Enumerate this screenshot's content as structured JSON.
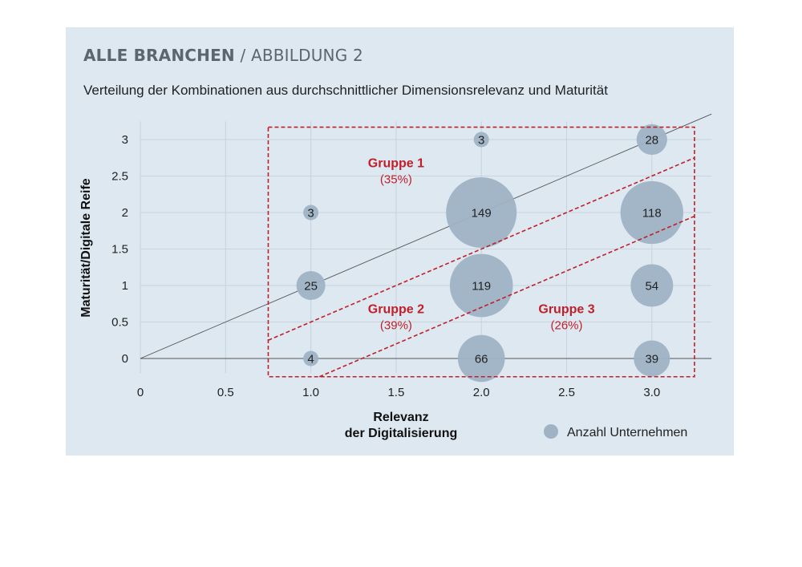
{
  "header": {
    "title_bold": "ALLE BRANCHEN",
    "separator": "/",
    "title_light": "ABBILDUNG 2",
    "subtitle": "Verteilung der Kombinationen aus durchschnittlicher Dimensionsrelevanz und Maturität"
  },
  "colors": {
    "panel_bg": "#dde8f0",
    "bubble": "#9fb3c5",
    "group": "#c0202a",
    "grid": "#c7d3dd",
    "axis": "#555555"
  },
  "chart_data": {
    "type": "scatter",
    "subtype": "bubble",
    "xlabel_lines": [
      "Relevanz",
      "der Digitalisierung"
    ],
    "ylabel": "Maturität/Digitale Reife",
    "xlim": [
      0,
      3.35
    ],
    "ylim": [
      -0.2,
      3.25
    ],
    "x_ticks": [
      0,
      0.5,
      1.0,
      1.5,
      2.0,
      2.5,
      3.0
    ],
    "x_tick_labels": [
      "0",
      "0.5",
      "1.0",
      "1.5",
      "2.0",
      "2.5",
      "3.0"
    ],
    "y_ticks": [
      0,
      0.5,
      1,
      1.5,
      2,
      2.5,
      3
    ],
    "y_tick_labels": [
      "0",
      "0.5",
      "1",
      "1.5",
      "2",
      "2.5",
      "3"
    ],
    "legend": {
      "label": "Anzahl Unternehmen",
      "position": "bottom-right"
    },
    "points": [
      {
        "x": 1,
        "y": 0,
        "count": 4,
        "label": "4"
      },
      {
        "x": 1,
        "y": 1,
        "count": 25,
        "label": "25"
      },
      {
        "x": 1,
        "y": 2,
        "count": 3,
        "label": "3"
      },
      {
        "x": 2,
        "y": 0,
        "count": 66,
        "label": "66"
      },
      {
        "x": 2,
        "y": 1,
        "count": 119,
        "label": "119"
      },
      {
        "x": 2,
        "y": 2,
        "count": 149,
        "label": "149"
      },
      {
        "x": 2,
        "y": 3,
        "count": 3,
        "label": "3"
      },
      {
        "x": 3,
        "y": 0,
        "count": 39,
        "label": "39"
      },
      {
        "x": 3,
        "y": 1,
        "count": 54,
        "label": "54"
      },
      {
        "x": 3,
        "y": 2,
        "count": 118,
        "label": "118"
      },
      {
        "x": 3,
        "y": 3,
        "count": 28,
        "label": "28"
      }
    ],
    "reference_line": {
      "from": [
        0,
        0
      ],
      "to": [
        3.35,
        3.35
      ]
    },
    "group_box": {
      "x": [
        0.75,
        3.25
      ],
      "y": [
        -0.25,
        3.17
      ]
    },
    "group_boundaries": [
      {
        "from": [
          0.75,
          0.25
        ],
        "to": [
          3.25,
          2.75
        ]
      },
      {
        "from": [
          1.05,
          -0.25
        ],
        "to": [
          3.25,
          1.95
        ]
      }
    ],
    "groups": [
      {
        "name": "Gruppe 1",
        "share": "(35%)",
        "x": 1.5,
        "y": 2.6
      },
      {
        "name": "Gruppe 2",
        "share": "(39%)",
        "x": 1.5,
        "y": 0.6
      },
      {
        "name": "Gruppe 3",
        "share": "(26%)",
        "x": 2.5,
        "y": 0.6
      }
    ]
  }
}
